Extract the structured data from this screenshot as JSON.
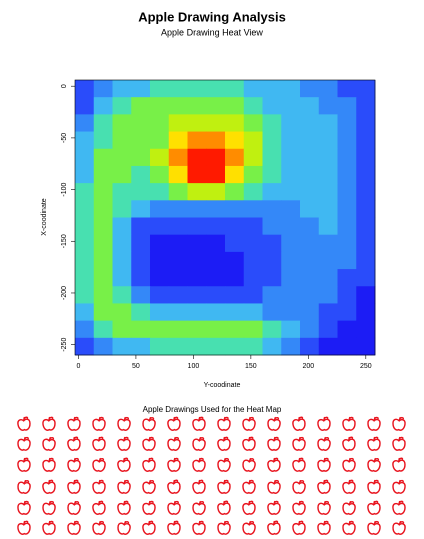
{
  "chart_data": {
    "type": "heatmap",
    "title": "Apple Drawing Analysis",
    "subtitle": "Apple Drawing Heat View",
    "x_label": "Y-coodinate",
    "y_label": "X-coodinate",
    "xlim": [
      -3,
      258
    ],
    "ylim": [
      -260,
      6
    ],
    "xticks": [
      0,
      50,
      100,
      150,
      200,
      250
    ],
    "yticks": [
      0,
      -50,
      -100,
      -150,
      -200,
      -250
    ],
    "colors": [
      "#1c1cf5",
      "#2a4cfa",
      "#3488f8",
      "#40b8f2",
      "#48e0b0",
      "#78f048",
      "#c0f010",
      "#ffe000",
      "#ff8c00",
      "#ff1a00"
    ],
    "z": [
      [
        1,
        2,
        3,
        3,
        4,
        4,
        4,
        4,
        4,
        3,
        3,
        3,
        2,
        2,
        1,
        1
      ],
      [
        1,
        3,
        4,
        5,
        5,
        5,
        5,
        5,
        5,
        4,
        3,
        3,
        3,
        2,
        2,
        1
      ],
      [
        2,
        4,
        5,
        5,
        5,
        6,
        6,
        6,
        6,
        5,
        4,
        3,
        3,
        3,
        2,
        1
      ],
      [
        3,
        4,
        5,
        5,
        5,
        7,
        8,
        8,
        7,
        6,
        4,
        3,
        3,
        3,
        2,
        1
      ],
      [
        3,
        5,
        5,
        5,
        6,
        8,
        9,
        9,
        8,
        6,
        4,
        3,
        3,
        3,
        2,
        1
      ],
      [
        3,
        5,
        5,
        4,
        5,
        7,
        9,
        9,
        7,
        5,
        4,
        3,
        3,
        3,
        2,
        1
      ],
      [
        4,
        5,
        4,
        4,
        4,
        5,
        6,
        6,
        5,
        4,
        3,
        3,
        3,
        3,
        2,
        1
      ],
      [
        4,
        5,
        4,
        3,
        2,
        2,
        2,
        2,
        2,
        2,
        2,
        2,
        3,
        3,
        2,
        1
      ],
      [
        4,
        5,
        3,
        1,
        1,
        1,
        1,
        1,
        1,
        1,
        2,
        2,
        2,
        3,
        2,
        1
      ],
      [
        4,
        5,
        3,
        1,
        0,
        0,
        0,
        0,
        1,
        1,
        1,
        2,
        2,
        2,
        2,
        1
      ],
      [
        4,
        5,
        3,
        1,
        0,
        0,
        0,
        0,
        0,
        1,
        1,
        2,
        2,
        2,
        2,
        1
      ],
      [
        4,
        5,
        3,
        1,
        0,
        0,
        0,
        0,
        0,
        1,
        1,
        2,
        2,
        2,
        1,
        1
      ],
      [
        4,
        5,
        4,
        2,
        1,
        1,
        1,
        1,
        1,
        1,
        2,
        2,
        2,
        2,
        1,
        0
      ],
      [
        3,
        5,
        5,
        4,
        3,
        3,
        3,
        3,
        3,
        3,
        2,
        2,
        2,
        1,
        1,
        0
      ],
      [
        2,
        4,
        5,
        5,
        5,
        5,
        5,
        5,
        5,
        5,
        4,
        3,
        2,
        1,
        0,
        0
      ],
      [
        1,
        2,
        3,
        3,
        4,
        4,
        4,
        4,
        4,
        4,
        3,
        2,
        1,
        0,
        0,
        0
      ]
    ],
    "gallery_title": "Apple Drawings Used for the Heat Map",
    "drawing_color": "#e8141e"
  }
}
